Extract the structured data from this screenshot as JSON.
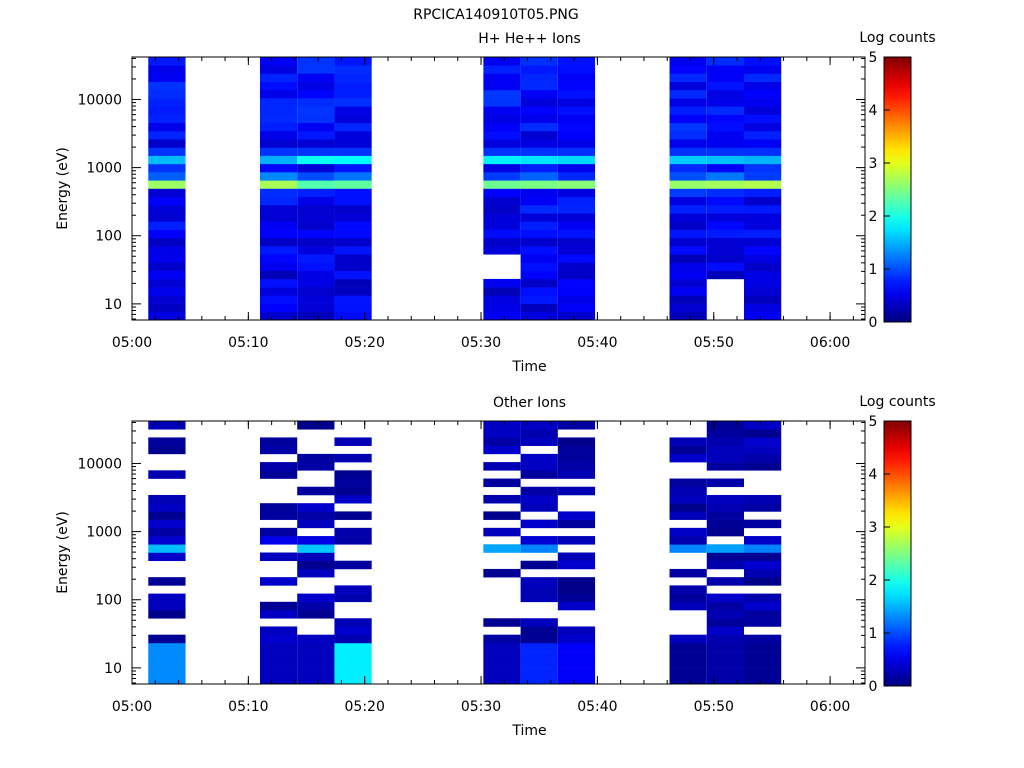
{
  "figure_title": "RPCICA140910T05.PNG",
  "colorbar": {
    "label": "Log counts",
    "ticks": [
      "0",
      "1",
      "2",
      "3",
      "4",
      "5"
    ],
    "range": [
      0,
      5
    ],
    "colormap": "jet"
  },
  "chart_data": [
    {
      "type": "heatmap",
      "title": "H+ He++ Ions",
      "xlabel": "Time",
      "ylabel": "Energy (eV)",
      "x_ticks": [
        "05:00",
        "05:10",
        "05:20",
        "05:30",
        "05:40",
        "05:50",
        "06:00"
      ],
      "y_ticks": [
        "10",
        "100",
        "1000",
        "10000"
      ],
      "xlim": [
        "05:00",
        "06:03"
      ],
      "ylim": [
        5.8,
        42000
      ],
      "y_scale": "log",
      "time_columns": [
        {
          "start": "05:01.4",
          "end": "05:04.6"
        },
        {
          "start": "05:11.0",
          "end": "05:14.2"
        },
        {
          "start": "05:14.2",
          "end": "05:17.4"
        },
        {
          "start": "05:17.4",
          "end": "05:20.6"
        },
        {
          "start": "05:30.2",
          "end": "05:33.4"
        },
        {
          "start": "05:33.4",
          "end": "05:36.6"
        },
        {
          "start": "05:36.6",
          "end": "05:39.8"
        },
        {
          "start": "05:46.2",
          "end": "05:49.4"
        },
        {
          "start": "05:49.4",
          "end": "05:52.6"
        },
        {
          "start": "05:52.6",
          "end": "05:55.8"
        }
      ],
      "energy_profile_log_counts": {
        "peak_energy_eV": 600,
        "peak_log_counts": 2.7,
        "secondary_peak_energy_eV": 1300,
        "secondary_peak_log_counts": 2.0,
        "background_log_counts": 0.6
      }
    },
    {
      "type": "heatmap",
      "title": "Other Ions",
      "xlabel": "Time",
      "ylabel": "Energy (eV)",
      "x_ticks": [
        "05:00",
        "05:10",
        "05:20",
        "05:30",
        "05:40",
        "05:50",
        "06:00"
      ],
      "y_ticks": [
        "10",
        "100",
        "1000",
        "10000"
      ],
      "xlim": [
        "05:00",
        "06:03"
      ],
      "ylim": [
        5.8,
        42000
      ],
      "y_scale": "log",
      "time_columns": [
        {
          "start": "05:01.4",
          "end": "05:04.6"
        },
        {
          "start": "05:11.0",
          "end": "05:14.2"
        },
        {
          "start": "05:14.2",
          "end": "05:17.4"
        },
        {
          "start": "05:17.4",
          "end": "05:20.6"
        },
        {
          "start": "05:30.2",
          "end": "05:33.4"
        },
        {
          "start": "05:33.4",
          "end": "05:36.6"
        },
        {
          "start": "05:36.6",
          "end": "05:39.8"
        },
        {
          "start": "05:46.2",
          "end": "05:49.4"
        },
        {
          "start": "05:49.4",
          "end": "05:52.6"
        },
        {
          "start": "05:52.6",
          "end": "05:55.8"
        }
      ],
      "energy_profile_log_counts": {
        "peak_energy_eV": 600,
        "peak_log_counts": 1.6,
        "background_log_counts": 0.2,
        "low_energy_log_counts": [
          1.3,
          0.3,
          0.3,
          1.8,
          0.3,
          0.8,
          0.6,
          0.1,
          0.2,
          0.1
        ]
      }
    }
  ]
}
